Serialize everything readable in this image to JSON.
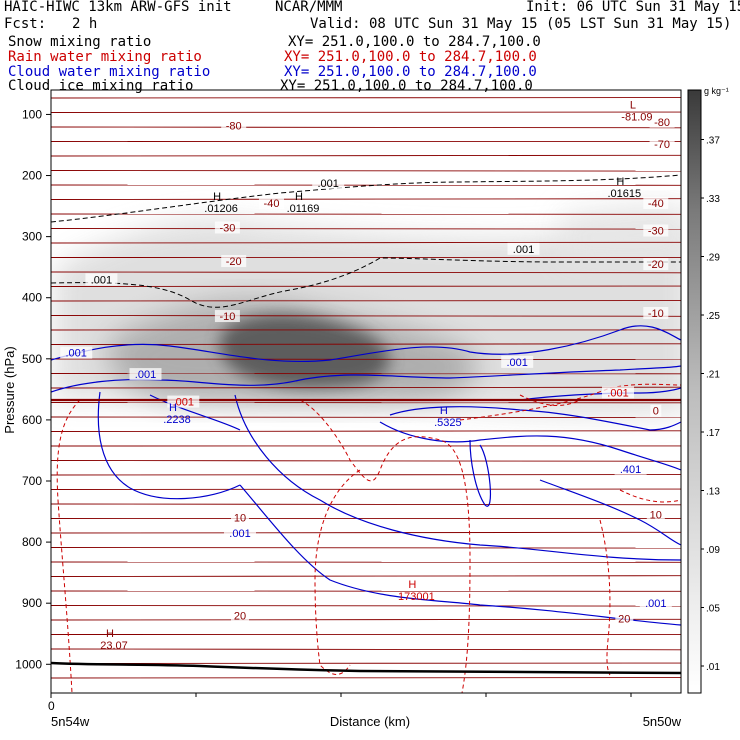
{
  "header": {
    "model": "HAIC-HIWC 13km ARW-GFS init",
    "org": "NCAR/MMM",
    "init": "Init: 06 UTC Sun 31 May 15",
    "fcst_label": "Fcst:",
    "fcst_value": "2 h",
    "valid": "Valid: 08 UTC Sun 31 May 15 (05 LST Sun 31 May 15)",
    "fields": [
      {
        "name": "Snow mixing ratio",
        "xy": "XY= 251.0,100.0 to 284.7,100.0",
        "color": "#000000"
      },
      {
        "name": "Rain water mixing ratio",
        "xy": "XY= 251.0,100.0 to 284.7,100.0",
        "color": "#cc0000"
      },
      {
        "name": "Cloud water mixing ratio",
        "xy": "XY= 251.0,100.0 to 284.7,100.0",
        "color": "#0000cc"
      },
      {
        "name": "Cloud ice mixing ratio",
        "xy": "XY= 251.0,100.0 to 284.7,100.0",
        "color": "#000000"
      }
    ]
  },
  "chart_data": {
    "type": "heatmap",
    "ylabel": "Pressure (hPa)",
    "xlabel": "Distance (km)",
    "y_ticks": [
      100,
      200,
      300,
      400,
      500,
      600,
      700,
      800,
      900,
      1000
    ],
    "x_tick_zero": "0",
    "x_left_label": "5n54w",
    "x_right_label": "5n50w",
    "colorbar_unit": "g kg⁻¹",
    "colorbar_levels": [
      ".01",
      ".05",
      ".09",
      ".13",
      ".17",
      ".21",
      ".25",
      ".29",
      ".33",
      ".37"
    ],
    "temperature_labels": [
      {
        "text": "-80",
        "p": 118,
        "f": 0.29
      },
      {
        "text": "-80",
        "p": 112,
        "f": 0.97
      },
      {
        "text": "-70",
        "p": 148,
        "f": 0.97
      },
      {
        "text": "-40",
        "p": 245,
        "f": 0.35
      },
      {
        "text": "-40",
        "p": 245,
        "f": 0.96
      },
      {
        "text": "-30",
        "p": 285,
        "f": 0.28
      },
      {
        "text": "-30",
        "p": 290,
        "f": 0.96
      },
      {
        "text": "-20",
        "p": 340,
        "f": 0.29
      },
      {
        "text": "-20",
        "p": 345,
        "f": 0.96
      },
      {
        "text": "-10",
        "p": 430,
        "f": 0.28
      },
      {
        "text": "-10",
        "p": 425,
        "f": 0.96
      },
      {
        "text": "0",
        "p": 585,
        "f": 0.96
      },
      {
        "text": "10",
        "p": 760,
        "f": 0.3
      },
      {
        "text": "10",
        "p": 755,
        "f": 0.96
      },
      {
        "text": "20",
        "p": 920,
        "f": 0.3
      },
      {
        "text": "20",
        "p": 925,
        "f": 0.91
      }
    ],
    "max_min_labels": [
      {
        "sym": "L",
        "val": "-81.09",
        "p": 100,
        "f": 0.93,
        "color": "#880000"
      },
      {
        "sym": "H",
        "val": ".01206",
        "p": 250,
        "f": 0.27,
        "color": "#000000"
      },
      {
        "sym": "H",
        "val": ".01169",
        "p": 250,
        "f": 0.4,
        "color": "#000000"
      },
      {
        "sym": "H",
        "val": ".01615",
        "p": 225,
        "f": 0.91,
        "color": "#000000"
      },
      {
        "sym": "H",
        "val": ".2238",
        "p": 595,
        "f": 0.2,
        "color": "#0000cc"
      },
      {
        "sym": "H",
        "val": ".5325",
        "p": 600,
        "f": 0.63,
        "color": "#0000cc"
      },
      {
        "sym": "H",
        "val": "173001",
        "p": 885,
        "f": 0.58,
        "color": "#cc0000"
      },
      {
        "sym": "H",
        "val": "23.07",
        "p": 965,
        "f": 0.1,
        "color": "#880000"
      }
    ],
    "contour_labels": [
      {
        "text": ".001",
        "p": 212,
        "f": 0.44,
        "color": "#000000"
      },
      {
        "text": ".001",
        "p": 320,
        "f": 0.75,
        "color": "#000000"
      },
      {
        "text": ".001",
        "p": 370,
        "f": 0.08,
        "color": "#000000"
      },
      {
        "text": ".001",
        "p": 490,
        "f": 0.04,
        "color": "#0000cc"
      },
      {
        "text": ".001",
        "p": 505,
        "f": 0.74,
        "color": "#0000cc"
      },
      {
        "text": ".001",
        "p": 525,
        "f": 0.15,
        "color": "#0000cc"
      },
      {
        "text": ".001",
        "p": 555,
        "f": 0.9,
        "color": "#cc0000"
      },
      {
        "text": ".001",
        "p": 570,
        "f": 0.21,
        "color": "#cc0000"
      },
      {
        "text": ".401",
        "p": 680,
        "f": 0.92,
        "color": "#0000cc"
      },
      {
        "text": ".001",
        "p": 785,
        "f": 0.3,
        "color": "#0000cc"
      },
      {
        "text": ".001",
        "p": 900,
        "f": 0.96,
        "color": "#0000cc"
      }
    ],
    "colors": {
      "isotherm": "#880000",
      "rain": "#cc0000",
      "cloud_water": "#0000cc",
      "snow": "#000000",
      "terrain": "#000000"
    }
  }
}
